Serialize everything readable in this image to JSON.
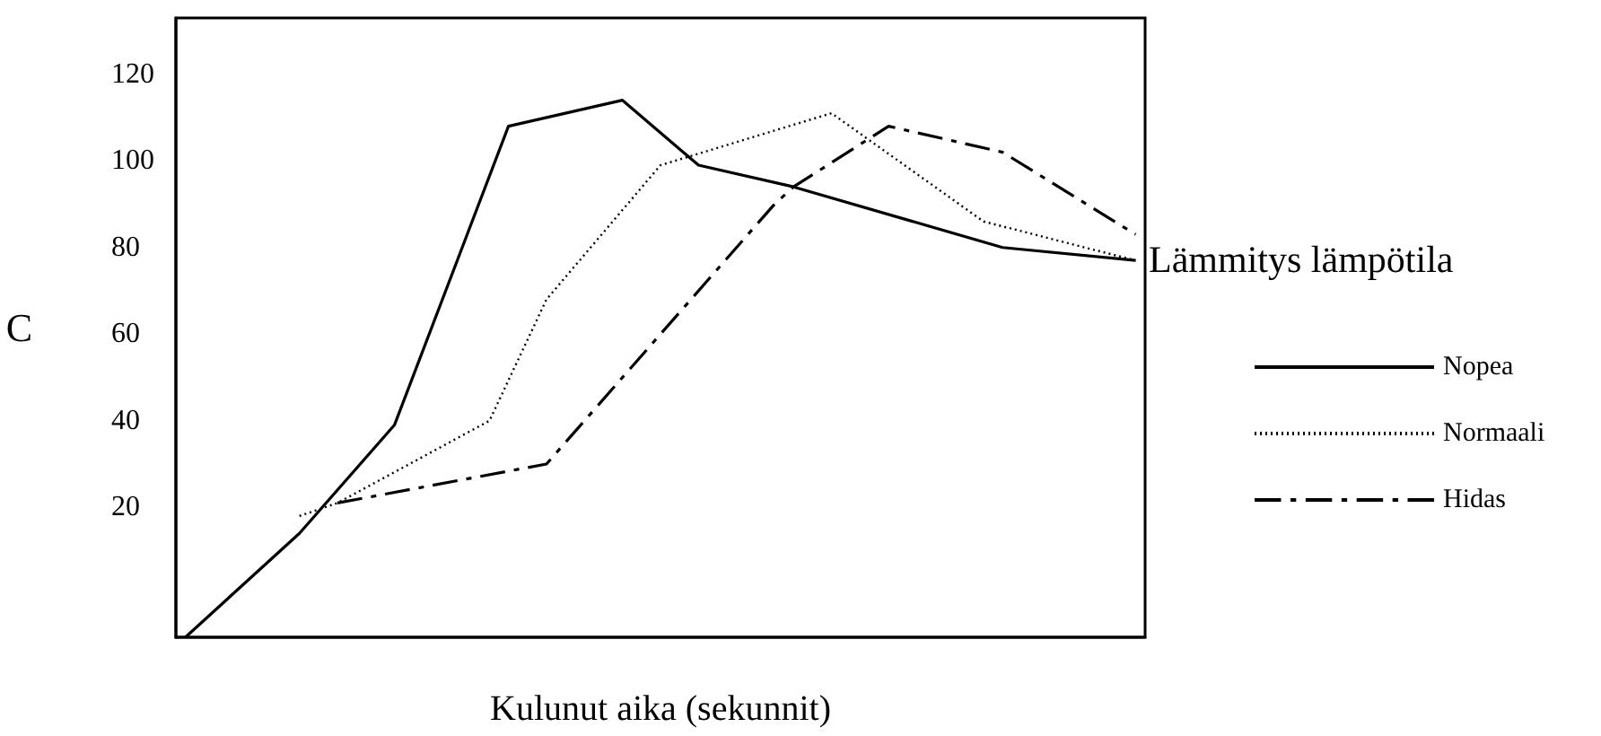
{
  "chart_data": {
    "type": "line",
    "xlabel": "Kulunut aika (sekunnit)",
    "ylabel": "C",
    "legend_title": "Lämmitys lämpötila",
    "categories": [
      null,
      null,
      null,
      null,
      null,
      null,
      null,
      null,
      null,
      null,
      null,
      null,
      null,
      null,
      null,
      null,
      null,
      null,
      null,
      null,
      null,
      null,
      null,
      null,
      null,
      null,
      null,
      null,
      null,
      null,
      null,
      null,
      null,
      null,
      null,
      null,
      null,
      null,
      null,
      null,
      null,
      null,
      null,
      null,
      null,
      null,
      null,
      null,
      null,
      null,
      null
    ],
    "ylim": [
      -10,
      133
    ],
    "yticks": [
      20,
      40,
      60,
      80,
      100,
      120
    ],
    "tick_labels": "y",
    "legend": "right",
    "marker": "none",
    "series": [
      {
        "name": "Nopea",
        "color": "#000000",
        "line_style": "solid",
        "values": [
          -10,
          null,
          null,
          null,
          null,
          null,
          14,
          null,
          null,
          null,
          null,
          39,
          null,
          null,
          null,
          null,
          null,
          108,
          null,
          null,
          null,
          null,
          null,
          114,
          null,
          null,
          null,
          99,
          null,
          null,
          null,
          null,
          94,
          null,
          null,
          null,
          null,
          null,
          null,
          null,
          null,
          null,
          null,
          80,
          null,
          null,
          null,
          null,
          null,
          null,
          77
        ]
      },
      {
        "name": "Normaali",
        "color": "#000000",
        "line_style": "dotted",
        "values": [
          null,
          null,
          null,
          null,
          null,
          null,
          18,
          null,
          21,
          null,
          null,
          null,
          null,
          null,
          null,
          null,
          40,
          null,
          null,
          68,
          null,
          null,
          null,
          null,
          null,
          99,
          null,
          null,
          null,
          null,
          null,
          null,
          null,
          null,
          111,
          null,
          null,
          null,
          null,
          null,
          null,
          null,
          86,
          null,
          null,
          null,
          null,
          null,
          null,
          null,
          77
        ]
      },
      {
        "name": "Hidas",
        "color": "#000000",
        "line_style": "dashed",
        "values": [
          null,
          null,
          null,
          null,
          null,
          null,
          null,
          null,
          21,
          null,
          null,
          null,
          null,
          null,
          null,
          null,
          null,
          null,
          null,
          30,
          null,
          null,
          null,
          null,
          null,
          null,
          null,
          null,
          null,
          null,
          null,
          90,
          94,
          null,
          null,
          null,
          null,
          108,
          null,
          null,
          null,
          null,
          null,
          102,
          null,
          null,
          null,
          null,
          null,
          null,
          83
        ]
      }
    ]
  }
}
